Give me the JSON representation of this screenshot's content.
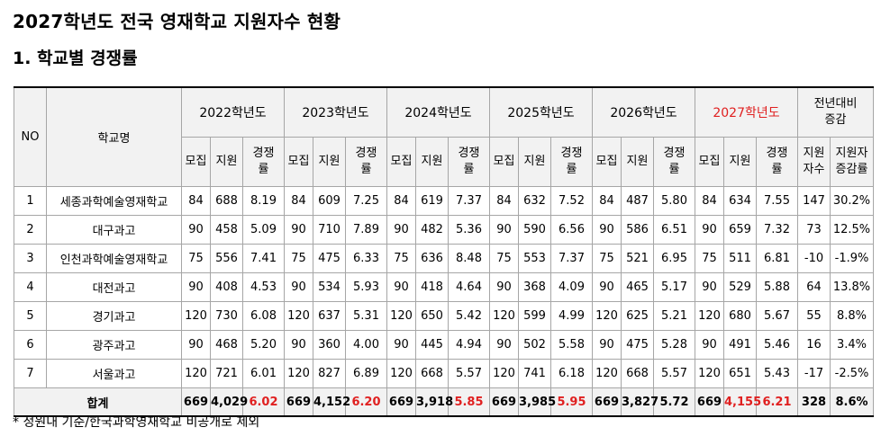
{
  "title": "2027학년도 전국 영재학교 지원자수 현황",
  "subtitle": "1. 학교별 경쟁률",
  "footnote": "* 정원내 기준/한국과학영재학교 비공개로 제외",
  "colors": {
    "highlight": "#e02020",
    "header_bg": "#f2f2f2"
  },
  "header": {
    "no": "NO",
    "school": "학교명",
    "years": [
      "2022학년도",
      "2023학년도",
      "2024학년도",
      "2025학년도",
      "2026학년도",
      "2027학년도"
    ],
    "change_title": "전년대비\n증감",
    "sub": {
      "recruit": "모집",
      "apply": "지원",
      "ratio": "경쟁\n률"
    },
    "change_count": "지원\n자수",
    "change_rate": "지원자\n증감률"
  },
  "rows": [
    {
      "no": "1",
      "school": "세종과학예술영재학교",
      "y2022": [
        "84",
        "688",
        "8.19"
      ],
      "y2023": [
        "84",
        "609",
        "7.25"
      ],
      "y2024": [
        "84",
        "619",
        "7.37"
      ],
      "y2025": [
        "84",
        "632",
        "7.52"
      ],
      "y2026": [
        "84",
        "487",
        "5.80"
      ],
      "y2027": [
        "84",
        "634",
        "7.55"
      ],
      "change_count": "147",
      "change_rate": "30.2%"
    },
    {
      "no": "2",
      "school": "대구과고",
      "y2022": [
        "90",
        "458",
        "5.09"
      ],
      "y2023": [
        "90",
        "710",
        "7.89"
      ],
      "y2024": [
        "90",
        "482",
        "5.36"
      ],
      "y2025": [
        "90",
        "590",
        "6.56"
      ],
      "y2026": [
        "90",
        "586",
        "6.51"
      ],
      "y2027": [
        "90",
        "659",
        "7.32"
      ],
      "change_count": "73",
      "change_rate": "12.5%"
    },
    {
      "no": "3",
      "school": "인천과학예술영재학교",
      "y2022": [
        "75",
        "556",
        "7.41"
      ],
      "y2023": [
        "75",
        "475",
        "6.33"
      ],
      "y2024": [
        "75",
        "636",
        "8.48"
      ],
      "y2025": [
        "75",
        "553",
        "7.37"
      ],
      "y2026": [
        "75",
        "521",
        "6.95"
      ],
      "y2027": [
        "75",
        "511",
        "6.81"
      ],
      "change_count": "-10",
      "change_rate": "-1.9%"
    },
    {
      "no": "4",
      "school": "대전과고",
      "y2022": [
        "90",
        "408",
        "4.53"
      ],
      "y2023": [
        "90",
        "534",
        "5.93"
      ],
      "y2024": [
        "90",
        "418",
        "4.64"
      ],
      "y2025": [
        "90",
        "368",
        "4.09"
      ],
      "y2026": [
        "90",
        "465",
        "5.17"
      ],
      "y2027": [
        "90",
        "529",
        "5.88"
      ],
      "change_count": "64",
      "change_rate": "13.8%"
    },
    {
      "no": "5",
      "school": "경기과고",
      "y2022": [
        "120",
        "730",
        "6.08"
      ],
      "y2023": [
        "120",
        "637",
        "5.31"
      ],
      "y2024": [
        "120",
        "650",
        "5.42"
      ],
      "y2025": [
        "120",
        "599",
        "4.99"
      ],
      "y2026": [
        "120",
        "625",
        "5.21"
      ],
      "y2027": [
        "120",
        "680",
        "5.67"
      ],
      "change_count": "55",
      "change_rate": "8.8%"
    },
    {
      "no": "6",
      "school": "광주과고",
      "y2022": [
        "90",
        "468",
        "5.20"
      ],
      "y2023": [
        "90",
        "360",
        "4.00"
      ],
      "y2024": [
        "90",
        "445",
        "4.94"
      ],
      "y2025": [
        "90",
        "502",
        "5.58"
      ],
      "y2026": [
        "90",
        "475",
        "5.28"
      ],
      "y2027": [
        "90",
        "491",
        "5.46"
      ],
      "change_count": "16",
      "change_rate": "3.4%"
    },
    {
      "no": "7",
      "school": "서울과고",
      "y2022": [
        "120",
        "721",
        "6.01"
      ],
      "y2023": [
        "120",
        "827",
        "6.89"
      ],
      "y2024": [
        "120",
        "668",
        "5.57"
      ],
      "y2025": [
        "120",
        "741",
        "6.18"
      ],
      "y2026": [
        "120",
        "668",
        "5.57"
      ],
      "y2027": [
        "120",
        "651",
        "5.43"
      ],
      "change_count": "-17",
      "change_rate": "-2.5%"
    }
  ],
  "total": {
    "label": "합계",
    "y2022": [
      "669",
      "4,029",
      "6.02"
    ],
    "y2023": [
      "669",
      "4,152",
      "6.20"
    ],
    "y2024": [
      "669",
      "3,918",
      "5.85"
    ],
    "y2025": [
      "669",
      "3,985",
      "5.95"
    ],
    "y2026": [
      "669",
      "3,827",
      "5.72"
    ],
    "y2027": [
      "669",
      "4,155",
      "6.21"
    ],
    "change_count": "328",
    "change_rate": "8.6%"
  }
}
